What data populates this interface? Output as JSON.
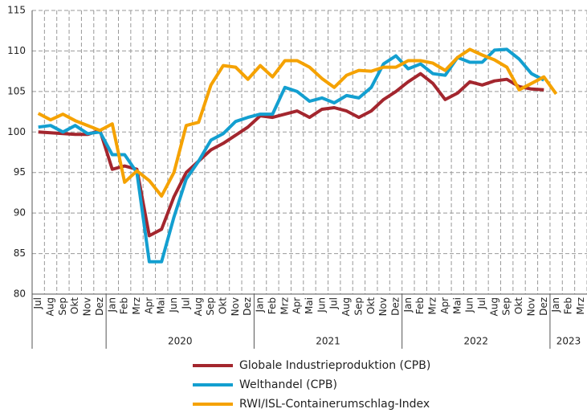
{
  "chart_data": {
    "type": "line",
    "groups": [
      {
        "label": null,
        "categories": [
          "Jul",
          "Aug",
          "Sep",
          "Okt",
          "Nov",
          "Dez"
        ]
      },
      {
        "label": "2020",
        "categories": [
          "Jan",
          "Feb",
          "Mrz",
          "Apr",
          "Mai",
          "Jun",
          "Jul",
          "Aug",
          "Sep",
          "Okt",
          "Nov",
          "Dez"
        ]
      },
      {
        "label": "2021",
        "categories": [
          "Jan",
          "Feb",
          "Mrz",
          "Apr",
          "Mai",
          "Jun",
          "Jul",
          "Aug",
          "Sep",
          "Okt",
          "Nov",
          "Dez"
        ]
      },
      {
        "label": "2022",
        "categories": [
          "Jan",
          "Feb",
          "Mrz",
          "Apr",
          "Mai",
          "Jun",
          "Jul",
          "Aug",
          "Sep",
          "Okt",
          "Nov",
          "Dez"
        ]
      },
      {
        "label": "2023",
        "categories": [
          "Jan",
          "Feb",
          "Mrz"
        ]
      }
    ],
    "series": [
      {
        "name": "Globale Industrieproduktion (CPB)",
        "color": "#a3262e",
        "values": [
          100,
          99.9,
          99.8,
          99.7,
          99.7,
          100.2,
          95.4,
          95.8,
          95.4,
          87.2,
          88,
          92,
          95,
          96.4,
          97.8,
          98.6,
          99.6,
          100.6,
          102,
          101.8,
          102.2,
          102.6,
          101.8,
          102.8,
          103,
          102.6,
          101.8,
          102.6,
          104,
          105,
          106.2,
          107.2,
          106,
          104,
          104.8,
          106.2,
          105.8,
          106.3,
          106.5,
          105.6,
          105.3,
          105.2,
          null,
          null,
          null
        ]
      },
      {
        "name": "Welthandel (CPB)",
        "color": "#139fd0",
        "values": [
          100.6,
          100.8,
          100,
          100.8,
          99.8,
          100,
          97.2,
          97.2,
          95,
          84,
          84,
          89.5,
          94.2,
          96.4,
          99,
          99.8,
          101.3,
          101.8,
          102.2,
          102.2,
          105.5,
          105,
          103.8,
          104.2,
          103.6,
          104.5,
          104.2,
          105.5,
          108.4,
          109.4,
          107.8,
          108.4,
          107.2,
          107,
          109.2,
          108.6,
          108.6,
          110.1,
          110.2,
          109,
          107.2,
          106.4,
          null,
          null,
          null
        ]
      },
      {
        "name": "RWI/ISL-Containerumschlag-Index",
        "color": "#f5a200",
        "values": [
          102.3,
          101.5,
          102.2,
          101.4,
          100.8,
          100.2,
          101,
          93.8,
          95.2,
          94,
          92.1,
          95,
          100.8,
          101.2,
          105.8,
          108.2,
          108,
          106.5,
          108.2,
          106.8,
          108.8,
          108.8,
          108,
          106.6,
          105.5,
          107,
          107.6,
          107.5,
          108,
          108,
          108.8,
          108.8,
          108.5,
          107.6,
          109.2,
          110.2,
          109.5,
          108.9,
          108,
          105.2,
          106,
          106.8,
          104.7,
          null,
          null
        ]
      }
    ],
    "ylim": [
      80,
      115
    ],
    "yticks": [
      80,
      85,
      90,
      95,
      100,
      105,
      110,
      115
    ],
    "grid": true
  }
}
